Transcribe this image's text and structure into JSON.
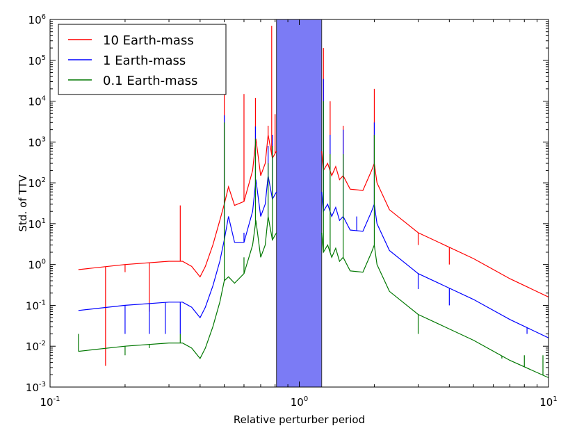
{
  "chart_data": {
    "type": "line",
    "title": "",
    "xlabel": "Relative perturber period",
    "ylabel": "Std. of TTV",
    "x_scale": "log",
    "y_scale": "log",
    "xlim": [
      0.1,
      10
    ],
    "ylim": [
      0.001,
      1000000
    ],
    "grid": false,
    "legend_position": "top-left",
    "x_ticks": [
      {
        "base": "10",
        "exp": "-1",
        "value": 0.1
      },
      {
        "base": "10",
        "exp": "0",
        "value": 1
      },
      {
        "base": "10",
        "exp": "1",
        "value": 10
      }
    ],
    "y_ticks": [
      {
        "base": "10",
        "exp": "-3",
        "value": 0.001
      },
      {
        "base": "10",
        "exp": "-2",
        "value": 0.01
      },
      {
        "base": "10",
        "exp": "-1",
        "value": 0.1
      },
      {
        "base": "10",
        "exp": "0",
        "value": 1
      },
      {
        "base": "10",
        "exp": "1",
        "value": 10
      },
      {
        "base": "10",
        "exp": "2",
        "value": 100
      },
      {
        "base": "10",
        "exp": "3",
        "value": 1000
      },
      {
        "base": "10",
        "exp": "4",
        "value": 10000
      },
      {
        "base": "10",
        "exp": "5",
        "value": 100000
      },
      {
        "base": "10",
        "exp": "6",
        "value": 1000000
      }
    ],
    "shaded_region": {
      "x_range": [
        0.81,
        1.23
      ],
      "color": "#7b7bf5"
    },
    "series": [
      {
        "name": "10 Earth-mass",
        "color": "#ff0000",
        "base_curve": [
          [
            0.13,
            0.75
          ],
          [
            0.2,
            1.0
          ],
          [
            0.3,
            1.2
          ],
          [
            0.34,
            1.2
          ],
          [
            0.37,
            0.9
          ],
          [
            0.4,
            0.5
          ],
          [
            0.42,
            0.9
          ],
          [
            0.45,
            3
          ],
          [
            0.48,
            12
          ],
          [
            0.5,
            30
          ],
          [
            0.52,
            80
          ],
          [
            0.55,
            28
          ],
          [
            0.6,
            35
          ],
          [
            0.65,
            200
          ],
          [
            0.67,
            1200
          ],
          [
            0.7,
            150
          ],
          [
            0.73,
            300
          ],
          [
            0.75,
            1500
          ],
          [
            0.78,
            400
          ],
          [
            0.81,
            600
          ],
          [
            1.23,
            600
          ],
          [
            1.25,
            200
          ],
          [
            1.3,
            300
          ],
          [
            1.35,
            150
          ],
          [
            1.4,
            250
          ],
          [
            1.45,
            120
          ],
          [
            1.5,
            150
          ],
          [
            1.6,
            70
          ],
          [
            1.8,
            65
          ],
          [
            1.95,
            200
          ],
          [
            2.0,
            300
          ],
          [
            2.05,
            100
          ],
          [
            2.3,
            22
          ],
          [
            3,
            6
          ],
          [
            5,
            1.4
          ],
          [
            7,
            0.45
          ],
          [
            10,
            0.16
          ]
        ],
        "spikes": [
          [
            0.167,
            0.0033
          ],
          [
            0.2,
            0.65
          ],
          [
            0.25,
            0.07
          ],
          [
            0.333,
            28
          ],
          [
            0.5,
            20000
          ],
          [
            0.6,
            15000
          ],
          [
            0.667,
            12000
          ],
          [
            0.75,
            2500
          ],
          [
            0.775,
            700000
          ],
          [
            0.8,
            4800
          ],
          [
            1.25,
            200000
          ],
          [
            1.33,
            10000
          ],
          [
            1.5,
            2500
          ],
          [
            2.0,
            20000
          ],
          [
            3.0,
            3.0
          ],
          [
            4.0,
            1.0
          ]
        ]
      },
      {
        "name": "1 Earth-mass",
        "color": "#0000ff",
        "base_curve": [
          [
            0.13,
            0.075
          ],
          [
            0.2,
            0.1
          ],
          [
            0.3,
            0.12
          ],
          [
            0.34,
            0.12
          ],
          [
            0.37,
            0.09
          ],
          [
            0.4,
            0.05
          ],
          [
            0.42,
            0.09
          ],
          [
            0.45,
            0.3
          ],
          [
            0.48,
            1.2
          ],
          [
            0.5,
            4
          ],
          [
            0.52,
            15
          ],
          [
            0.55,
            3.5
          ],
          [
            0.6,
            3.5
          ],
          [
            0.65,
            20
          ],
          [
            0.67,
            120
          ],
          [
            0.7,
            15
          ],
          [
            0.73,
            30
          ],
          [
            0.75,
            150
          ],
          [
            0.78,
            40
          ],
          [
            0.81,
            60
          ],
          [
            1.23,
            60
          ],
          [
            1.25,
            20
          ],
          [
            1.3,
            30
          ],
          [
            1.35,
            15
          ],
          [
            1.4,
            25
          ],
          [
            1.45,
            12
          ],
          [
            1.5,
            15
          ],
          [
            1.6,
            7
          ],
          [
            1.8,
            6.5
          ],
          [
            1.95,
            20
          ],
          [
            2.0,
            30
          ],
          [
            2.05,
            10
          ],
          [
            2.3,
            2.2
          ],
          [
            3,
            0.6
          ],
          [
            5,
            0.14
          ],
          [
            7,
            0.045
          ],
          [
            10,
            0.016
          ]
        ],
        "spikes": [
          [
            0.2,
            0.02
          ],
          [
            0.25,
            0.02
          ],
          [
            0.29,
            0.02
          ],
          [
            0.333,
            0.02
          ],
          [
            0.5,
            4500
          ],
          [
            0.6,
            6
          ],
          [
            0.667,
            2400
          ],
          [
            0.75,
            800
          ],
          [
            0.78,
            1500
          ],
          [
            1.25,
            35000
          ],
          [
            1.33,
            1500
          ],
          [
            1.5,
            2000
          ],
          [
            1.7,
            15
          ],
          [
            2.0,
            3000
          ],
          [
            3.0,
            0.25
          ],
          [
            4.0,
            0.1
          ],
          [
            8.2,
            0.02
          ]
        ]
      },
      {
        "name": "0.1 Earth-mass",
        "color": "#007700",
        "base_curve": [
          [
            0.13,
            0.0075
          ],
          [
            0.2,
            0.01
          ],
          [
            0.3,
            0.012
          ],
          [
            0.34,
            0.012
          ],
          [
            0.37,
            0.009
          ],
          [
            0.4,
            0.005
          ],
          [
            0.42,
            0.009
          ],
          [
            0.45,
            0.03
          ],
          [
            0.48,
            0.12
          ],
          [
            0.5,
            0.4
          ],
          [
            0.52,
            0.5
          ],
          [
            0.55,
            0.35
          ],
          [
            0.6,
            0.6
          ],
          [
            0.65,
            3
          ],
          [
            0.67,
            12
          ],
          [
            0.7,
            1.5
          ],
          [
            0.73,
            3
          ],
          [
            0.75,
            15
          ],
          [
            0.78,
            4
          ],
          [
            0.81,
            6
          ],
          [
            1.23,
            6
          ],
          [
            1.25,
            2
          ],
          [
            1.3,
            3
          ],
          [
            1.35,
            1.5
          ],
          [
            1.4,
            2.5
          ],
          [
            1.45,
            1.2
          ],
          [
            1.5,
            1.5
          ],
          [
            1.6,
            0.7
          ],
          [
            1.8,
            0.65
          ],
          [
            1.95,
            2
          ],
          [
            2.0,
            3
          ],
          [
            2.05,
            1
          ],
          [
            2.3,
            0.22
          ],
          [
            3,
            0.06
          ],
          [
            5,
            0.014
          ],
          [
            7,
            0.0045
          ],
          [
            10,
            0.0017
          ]
        ],
        "spikes": [
          [
            0.13,
            0.02
          ],
          [
            0.2,
            0.006
          ],
          [
            0.25,
            0.009
          ],
          [
            0.333,
            0.02
          ],
          [
            0.5,
            3000
          ],
          [
            0.6,
            1.5
          ],
          [
            0.667,
            1200
          ],
          [
            0.75,
            300
          ],
          [
            0.78,
            800
          ],
          [
            1.25,
            10000
          ],
          [
            1.33,
            500
          ],
          [
            1.5,
            500
          ],
          [
            2.0,
            1500
          ],
          [
            3.0,
            0.02
          ],
          [
            6.5,
            0.005
          ],
          [
            8.0,
            0.006
          ],
          [
            9.5,
            0.006
          ]
        ]
      }
    ]
  }
}
